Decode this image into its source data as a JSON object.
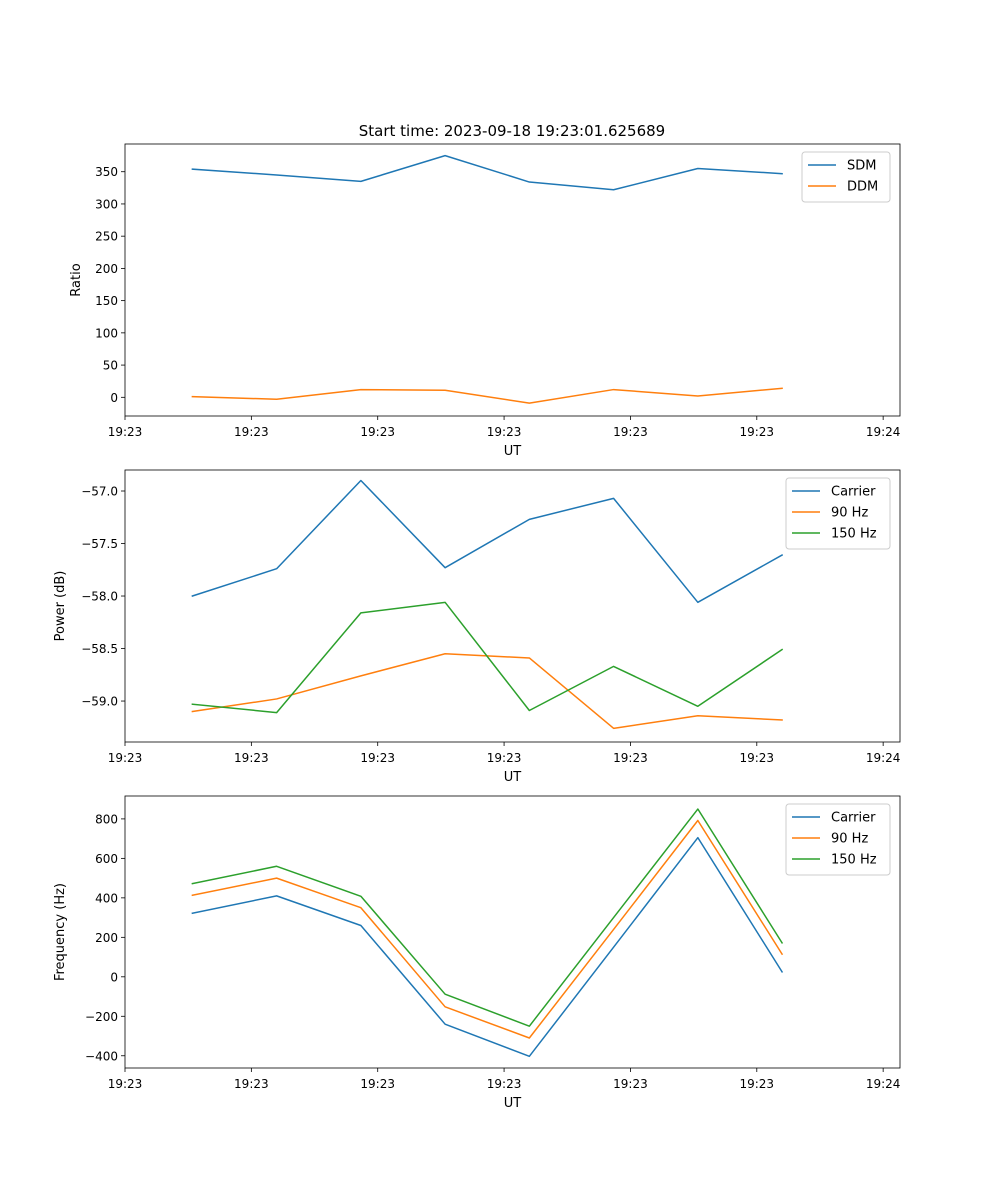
{
  "figure_title": "Start time: 2023-09-18 19:23:01.625689",
  "colors": {
    "blue": "#1f77b4",
    "orange": "#ff7f0e",
    "green": "#2ca02c",
    "axis": "#000000",
    "legend_border": "#cccccc"
  },
  "chart_data": [
    {
      "type": "line",
      "title": "Start time: 2023-09-18 19:23:01.625689",
      "xlabel": "UT",
      "ylabel": "Ratio",
      "x_tick_labels": [
        "19:23",
        "19:23",
        "19:23",
        "19:23",
        "19:23",
        "19:23",
        "19:24"
      ],
      "x": [
        1,
        2,
        3,
        4,
        5,
        6,
        7,
        8
      ],
      "xlim": [
        0.2,
        9.4
      ],
      "x_ticks": [
        0.2,
        1.7,
        3.2,
        4.7,
        6.2,
        7.7,
        9.2
      ],
      "ylim": [
        -29,
        393
      ],
      "y_ticks": [
        0,
        50,
        100,
        150,
        200,
        250,
        300,
        350
      ],
      "y_tick_labels": [
        "0",
        "50",
        "100",
        "150",
        "200",
        "250",
        "300",
        "350"
      ],
      "legend_position": "top-right",
      "series": [
        {
          "name": "SDM",
          "color": "#1f77b4",
          "values": [
            354,
            345,
            335,
            375,
            334,
            322,
            355,
            347
          ]
        },
        {
          "name": "DDM",
          "color": "#ff7f0e",
          "values": [
            1,
            -3,
            12,
            11,
            -9,
            12,
            2,
            14
          ]
        }
      ]
    },
    {
      "type": "line",
      "title": "",
      "xlabel": "UT",
      "ylabel": "Power (dB)",
      "x_tick_labels": [
        "19:23",
        "19:23",
        "19:23",
        "19:23",
        "19:23",
        "19:23",
        "19:24"
      ],
      "x": [
        1,
        2,
        3,
        4,
        5,
        6,
        7,
        8
      ],
      "xlim": [
        0.2,
        9.4
      ],
      "x_ticks": [
        0.2,
        1.7,
        3.2,
        4.7,
        6.2,
        7.7,
        9.2
      ],
      "ylim": [
        -59.39,
        -56.8
      ],
      "y_ticks": [
        -59.0,
        -58.5,
        -58.0,
        -57.5,
        -57.0
      ],
      "y_tick_labels": [
        "−59.0",
        "−58.5",
        "−58.0",
        "−57.5",
        "−57.0"
      ],
      "legend_position": "top-right",
      "series": [
        {
          "name": "Carrier",
          "color": "#1f77b4",
          "values": [
            -58.0,
            -57.74,
            -56.9,
            -57.73,
            -57.27,
            -57.07,
            -58.06,
            -57.61
          ]
        },
        {
          "name": "90 Hz",
          "color": "#ff7f0e",
          "values": [
            -59.1,
            -58.98,
            -58.76,
            -58.55,
            -58.59,
            -59.26,
            -59.14,
            -59.18
          ]
        },
        {
          "name": "150 Hz",
          "color": "#2ca02c",
          "values": [
            -59.03,
            -59.11,
            -58.16,
            -58.06,
            -59.09,
            -58.67,
            -59.05,
            -58.51
          ]
        }
      ]
    },
    {
      "type": "line",
      "title": "",
      "xlabel": "UT",
      "ylabel": "Frequency (Hz)",
      "x_tick_labels": [
        "19:23",
        "19:23",
        "19:23",
        "19:23",
        "19:23",
        "19:23",
        "19:24"
      ],
      "x": [
        1,
        2,
        3,
        4,
        5,
        6,
        7,
        8
      ],
      "xlim": [
        0.2,
        9.4
      ],
      "x_ticks": [
        0.2,
        1.7,
        3.2,
        4.7,
        6.2,
        7.7,
        9.2
      ],
      "ylim": [
        -462,
        916
      ],
      "y_ticks": [
        -400,
        -200,
        0,
        200,
        400,
        600,
        800
      ],
      "y_tick_labels": [
        "−400",
        "−200",
        "0",
        "200",
        "400",
        "600",
        "800"
      ],
      "legend_position": "top-right",
      "series": [
        {
          "name": "Carrier",
          "color": "#1f77b4",
          "values": [
            322,
            410,
            260,
            -240,
            -403,
            150,
            705,
            25
          ]
        },
        {
          "name": "90 Hz",
          "color": "#ff7f0e",
          "values": [
            413,
            500,
            350,
            -152,
            -310,
            240,
            792,
            115
          ]
        },
        {
          "name": "150 Hz",
          "color": "#2ca02c",
          "values": [
            472,
            560,
            408,
            -88,
            -250,
            300,
            850,
            172
          ]
        }
      ]
    }
  ]
}
